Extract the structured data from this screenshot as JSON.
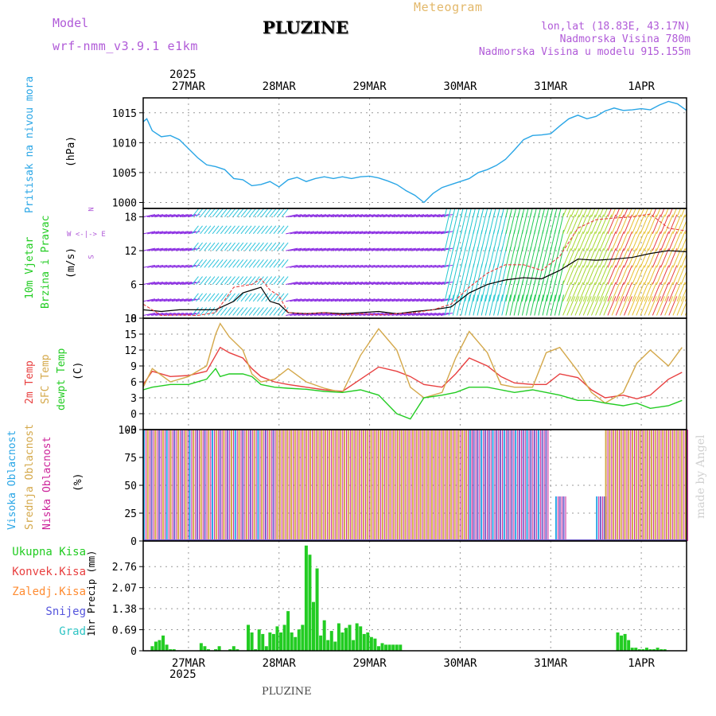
{
  "header": {
    "model_label": "Model",
    "model_name": "wrf-nmm_v3.9.1 e1km",
    "station": "PLUZINE",
    "meteogram": "Meteogram",
    "lonlat": "lon,lat (18.83E, 43.17N)",
    "elevation": "Nadmorska Visina 780m",
    "model_elevation": "Nadmorska Visina u modelu 915.155m",
    "footer_station": "PLUZINE",
    "watermark": "made by Angel"
  },
  "colors": {
    "pressure": "#2aa6e6",
    "t2m": "#e84040",
    "sfc": "#d4a84a",
    "dewpt": "#22cc22",
    "purple": "#8a2be2",
    "grid": "#999999"
  },
  "chart_data": [
    {
      "type": "line",
      "title": "",
      "ylabel": [
        "Pritisak na nivou mora",
        "(hPa)"
      ],
      "ylim": [
        999,
        1017.5
      ],
      "yticks": [
        1000,
        1005,
        1010,
        1015
      ],
      "x_range_days": [
        0,
        6.0
      ],
      "x_ticks": [
        {
          "day": 0.5,
          "label": "27MAR"
        },
        {
          "day": 1.5,
          "label": "28MAR"
        },
        {
          "day": 2.5,
          "label": "29MAR"
        },
        {
          "day": 3.5,
          "label": "30MAR"
        },
        {
          "day": 4.5,
          "label": "31MAR"
        },
        {
          "day": 5.5,
          "label": "1APR"
        }
      ],
      "top_year": "2025",
      "series": [
        {
          "values_x": [
            0,
            0.04,
            0.1,
            0.2,
            0.3,
            0.4,
            0.5,
            0.6,
            0.7,
            0.8,
            0.9,
            1.0,
            1.1,
            1.2,
            1.3,
            1.4,
            1.5,
            1.6,
            1.7,
            1.8,
            1.9,
            2.0,
            2.1,
            2.2,
            2.3,
            2.4,
            2.5,
            2.6,
            2.7,
            2.8,
            2.9,
            3.0,
            3.1,
            3.2,
            3.3,
            3.4,
            3.5,
            3.6,
            3.7,
            3.8,
            3.9,
            4.0,
            4.1,
            4.2,
            4.3,
            4.4,
            4.5,
            4.6,
            4.7,
            4.8,
            4.9,
            5.0,
            5.1,
            5.2,
            5.3,
            5.4,
            5.5,
            5.6,
            5.7,
            5.8,
            5.9,
            6.0
          ],
          "values_y": [
            1013.5,
            1014.0,
            1012.0,
            1011.0,
            1011.2,
            1010.5,
            1009.0,
            1007.5,
            1006.3,
            1006.0,
            1005.5,
            1004.0,
            1003.8,
            1002.8,
            1003.0,
            1003.5,
            1002.6,
            1003.8,
            1004.2,
            1003.5,
            1004.0,
            1004.3,
            1004.0,
            1004.3,
            1004.0,
            1004.3,
            1004.4,
            1004.1,
            1003.6,
            1003.0,
            1002.0,
            1001.2,
            1000.0,
            1001.5,
            1002.5,
            1003.0,
            1003.5,
            1004.0,
            1005.0,
            1005.5,
            1006.2,
            1007.2,
            1008.8,
            1010.5,
            1011.2,
            1011.3,
            1011.5,
            1012.8,
            1014.0,
            1014.6,
            1014.0,
            1014.4,
            1015.3,
            1015.8,
            1015.4,
            1015.5,
            1015.7,
            1015.5,
            1016.3,
            1016.9,
            1016.5,
            1015.4
          ]
        }
      ]
    },
    {
      "type": "line",
      "title": "",
      "ylabel": [
        "10m Vjetar",
        "Brzina i Pravac",
        "(m/s)"
      ],
      "wind_legend": [
        "N",
        "W <-|-> E",
        "S"
      ],
      "ylim": [
        0,
        19.5
      ],
      "yticks": [
        0,
        6,
        12,
        18
      ],
      "series": [
        {
          "name": "wind speed",
          "values_x": [
            0,
            0.2,
            0.4,
            0.6,
            0.8,
            1.0,
            1.1,
            1.2,
            1.3,
            1.4,
            1.5,
            1.6,
            1.8,
            2.0,
            2.2,
            2.4,
            2.6,
            2.8,
            3.0,
            3.2,
            3.4,
            3.6,
            3.8,
            4.0,
            4.2,
            4.4,
            4.6,
            4.8,
            5.0,
            5.2,
            5.4,
            5.6,
            5.8,
            6.0
          ],
          "values_y": [
            1.5,
            1.2,
            1.5,
            1.5,
            1.5,
            3.0,
            4.5,
            5.0,
            5.5,
            3.0,
            2.5,
            1.0,
            0.8,
            1.0,
            0.8,
            1.0,
            1.2,
            0.8,
            1.2,
            1.5,
            2.0,
            4.5,
            6.0,
            6.8,
            7.2,
            7.0,
            8.5,
            10.5,
            10.3,
            10.5,
            10.8,
            11.5,
            12.0,
            11.8
          ]
        },
        {
          "name": "wind gust",
          "values_x": [
            0,
            0.2,
            0.4,
            0.6,
            0.8,
            1.0,
            1.2,
            1.3,
            1.4,
            1.5,
            1.6,
            1.8,
            2.0,
            2.2,
            2.4,
            2.6,
            2.8,
            3.0,
            3.2,
            3.4,
            3.6,
            3.8,
            4.0,
            4.2,
            4.4,
            4.6,
            4.8,
            5.0,
            5.2,
            5.4,
            5.6,
            5.8,
            6.0
          ],
          "values_y": [
            2.5,
            0.5,
            0.6,
            0.5,
            1.0,
            5.5,
            6.0,
            7.0,
            5.0,
            4.0,
            1.0,
            0.8,
            1.0,
            0.6,
            0.8,
            0.6,
            0.8,
            1.0,
            1.5,
            2.5,
            5.5,
            8.0,
            9.5,
            9.5,
            8.5,
            11.0,
            16.0,
            17.5,
            17.8,
            18.0,
            18.5,
            16.0,
            15.5
          ]
        }
      ]
    },
    {
      "type": "line",
      "title": "",
      "ylabel": [
        "2m Temp",
        "SFC Temp",
        "dewpt Temp",
        "(C)"
      ],
      "ylim": [
        -3,
        18
      ],
      "yticks": [
        -3,
        0,
        3,
        6,
        9,
        12,
        15,
        18
      ],
      "series": [
        {
          "name": "2m Temp",
          "values_x": [
            0,
            0.1,
            0.3,
            0.5,
            0.7,
            0.8,
            0.85,
            0.95,
            1.1,
            1.2,
            1.3,
            1.45,
            1.6,
            1.8,
            2.0,
            2.2,
            2.4,
            2.6,
            2.8,
            2.95,
            3.1,
            3.3,
            3.45,
            3.6,
            3.8,
            3.95,
            4.1,
            4.3,
            4.45,
            4.6,
            4.8,
            4.95,
            5.1,
            5.3,
            5.45,
            5.6,
            5.8,
            5.95
          ],
          "values_y": [
            5.5,
            8.0,
            7.0,
            7.2,
            8.0,
            11.0,
            12.5,
            11.5,
            10.5,
            8.5,
            7.0,
            6.0,
            5.5,
            5.0,
            4.5,
            4.2,
            6.5,
            8.8,
            8.0,
            7.0,
            5.5,
            5.0,
            7.5,
            10.5,
            9.0,
            7.0,
            5.8,
            5.5,
            5.5,
            7.5,
            6.8,
            4.5,
            3.0,
            3.5,
            2.8,
            3.5,
            6.5,
            7.8
          ]
        },
        {
          "name": "SFC Temp",
          "values_x": [
            0,
            0.1,
            0.3,
            0.5,
            0.7,
            0.8,
            0.85,
            0.95,
            1.1,
            1.2,
            1.3,
            1.45,
            1.6,
            1.8,
            2.0,
            2.2,
            2.4,
            2.6,
            2.8,
            2.95,
            3.1,
            3.3,
            3.45,
            3.6,
            3.8,
            3.95,
            4.1,
            4.3,
            4.45,
            4.6,
            4.8,
            4.95,
            5.1,
            5.3,
            5.45,
            5.6,
            5.8,
            5.95
          ],
          "values_y": [
            5.0,
            8.5,
            6.0,
            7.0,
            9.0,
            15.0,
            17.0,
            14.5,
            12.0,
            7.5,
            6.0,
            6.5,
            8.5,
            6.0,
            4.8,
            4.0,
            11.0,
            16.0,
            12.0,
            5.0,
            3.0,
            4.0,
            10.5,
            15.5,
            11.5,
            5.5,
            5.0,
            5.0,
            11.5,
            12.5,
            8.0,
            4.0,
            2.0,
            4.0,
            9.5,
            12.0,
            9.0,
            12.5
          ]
        },
        {
          "name": "dewpt Temp",
          "values_x": [
            0,
            0.1,
            0.3,
            0.5,
            0.7,
            0.8,
            0.85,
            0.95,
            1.1,
            1.2,
            1.3,
            1.45,
            1.6,
            1.8,
            2.0,
            2.2,
            2.4,
            2.6,
            2.8,
            2.95,
            3.1,
            3.3,
            3.45,
            3.6,
            3.8,
            3.95,
            4.1,
            4.3,
            4.45,
            4.6,
            4.8,
            4.95,
            5.1,
            5.3,
            5.45,
            5.6,
            5.8,
            5.95
          ],
          "values_y": [
            4.5,
            5.0,
            5.5,
            5.5,
            6.5,
            8.5,
            7.0,
            7.5,
            7.5,
            7.0,
            5.5,
            5.0,
            4.8,
            4.6,
            4.2,
            4.0,
            4.5,
            3.5,
            0.0,
            -1.0,
            3.0,
            3.5,
            4.0,
            5.0,
            5.0,
            4.5,
            4.0,
            4.5,
            4.0,
            3.5,
            2.5,
            2.5,
            2.0,
            1.5,
            2.0,
            1.0,
            1.5,
            2.5
          ]
        }
      ]
    },
    {
      "type": "bar",
      "title": "",
      "ylabel": [
        "Visoka Oblacnost",
        "Srednja Oblacnost",
        "Niska Oblacnost",
        "(%)"
      ],
      "ylim": [
        0,
        100
      ],
      "yticks": [
        0,
        25,
        50,
        75,
        100
      ],
      "series": [
        {
          "name": "Visoka",
          "note": "high cloud"
        },
        {
          "name": "Srednja",
          "note": "mid cloud"
        },
        {
          "name": "Niska",
          "note": "low cloud"
        }
      ],
      "coverage_windows": [
        {
          "from": 0.0,
          "to": 1.5,
          "level": 100
        },
        {
          "from": 1.5,
          "to": 3.6,
          "level": 100
        },
        {
          "from": 3.6,
          "to": 4.45,
          "level": 100
        },
        {
          "from": 4.55,
          "to": 4.65,
          "level": 40
        },
        {
          "from": 5.0,
          "to": 5.1,
          "level": 40
        },
        {
          "from": 5.1,
          "to": 6.0,
          "level": 100
        }
      ]
    },
    {
      "type": "bar",
      "title": "",
      "ylabel": [
        "1hr Precip (mm)"
      ],
      "legend": [
        "Ukupna Kisa",
        "Konvek.Kisa",
        "Zaledj.Kisa",
        "Snijeg",
        "Grad"
      ],
      "legend_colors": [
        "#22cc22",
        "#e84040",
        "#ff8c32",
        "#5555dd",
        "#2ec4c4"
      ],
      "ylim": [
        0,
        3.6
      ],
      "yticks": [
        0,
        0.69,
        1.38,
        2.07,
        2.76
      ],
      "bottom_ticks": [
        {
          "day": 0.5,
          "label": "27MAR"
        },
        {
          "day": 1.5,
          "label": "28MAR"
        },
        {
          "day": 2.5,
          "label": "29MAR"
        },
        {
          "day": 3.5,
          "label": "30MAR"
        },
        {
          "day": 4.5,
          "label": "31MAR"
        },
        {
          "day": 5.5,
          "label": "1APR"
        }
      ],
      "bottom_year": "2025",
      "values_x": [
        0.1,
        0.14,
        0.18,
        0.22,
        0.26,
        0.3,
        0.34,
        0.64,
        0.68,
        0.72,
        0.8,
        0.84,
        0.96,
        1.0,
        1.04,
        1.16,
        1.2,
        1.24,
        1.28,
        1.32,
        1.36,
        1.4,
        1.44,
        1.48,
        1.52,
        1.56,
        1.6,
        1.64,
        1.68,
        1.72,
        1.76,
        1.8,
        1.84,
        1.88,
        1.92,
        1.96,
        2.0,
        2.04,
        2.08,
        2.12,
        2.16,
        2.2,
        2.24,
        2.28,
        2.32,
        2.36,
        2.4,
        2.44,
        2.48,
        2.52,
        2.56,
        2.6,
        2.64,
        2.68,
        2.72,
        2.76,
        2.8,
        2.84,
        5.24,
        5.28,
        5.32,
        5.36,
        5.4,
        5.44,
        5.48,
        5.52,
        5.56,
        5.6,
        5.64,
        5.68,
        5.72,
        5.76
      ],
      "values": [
        0.15,
        0.3,
        0.35,
        0.5,
        0.2,
        0.05,
        0.05,
        0.25,
        0.15,
        0.05,
        0.05,
        0.15,
        0.05,
        0.15,
        0.05,
        0.85,
        0.6,
        0.05,
        0.7,
        0.55,
        0.15,
        0.6,
        0.55,
        0.8,
        0.6,
        0.85,
        1.3,
        0.6,
        0.45,
        0.7,
        0.85,
        3.45,
        3.15,
        1.6,
        2.7,
        0.5,
        1.0,
        0.35,
        0.65,
        0.3,
        0.9,
        0.6,
        0.75,
        0.85,
        0.35,
        0.9,
        0.8,
        0.55,
        0.6,
        0.45,
        0.4,
        0.15,
        0.25,
        0.2,
        0.2,
        0.2,
        0.2,
        0.2,
        0.6,
        0.5,
        0.55,
        0.35,
        0.1,
        0.1,
        0.05,
        0.05,
        0.1,
        0.05,
        0.05,
        0.1,
        0.05,
        0.05
      ]
    }
  ]
}
